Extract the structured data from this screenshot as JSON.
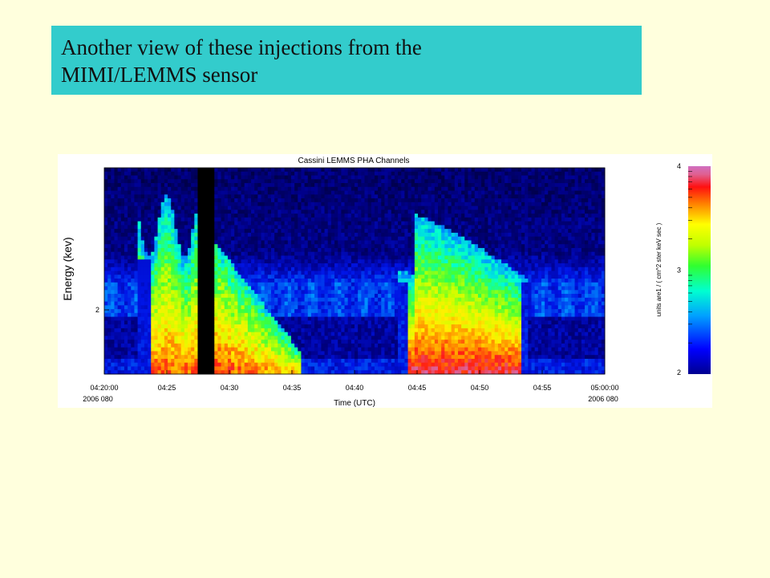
{
  "slide": {
    "title_line1": "Another view of these injections from the",
    "title_line2": "MIMI/LEMMS sensor"
  },
  "chart_data": {
    "type": "heatmap",
    "title": "Cassini LEMMS PHA Channels",
    "xlabel": "Time (UTC)",
    "ylabel": "Energy (kev)",
    "x_ticks": [
      "04:20:00",
      "04:25",
      "04:30",
      "04:35",
      "04:40",
      "04:45",
      "04:50",
      "04:55",
      "05:00:00"
    ],
    "x_ticks_minutes": [
      0,
      5,
      10,
      15,
      20,
      25,
      30,
      35,
      40
    ],
    "x_date_left": "2006 080",
    "x_date_right": "2006 080",
    "y_ticks": [
      "2"
    ],
    "colorbar": {
      "label": "units are1 / ( cm^2 ster keV sec )",
      "ticks": [
        "2",
        "3",
        "4"
      ],
      "range": [
        2,
        4
      ],
      "colormap": "rainbow"
    },
    "data_gap_minutes": [
      7.5,
      8.7
    ],
    "injection_intervals_minutes": [
      [
        2.8,
        7.5
      ],
      [
        8.7,
        15.8
      ],
      [
        23.5,
        34.0
      ]
    ]
  }
}
